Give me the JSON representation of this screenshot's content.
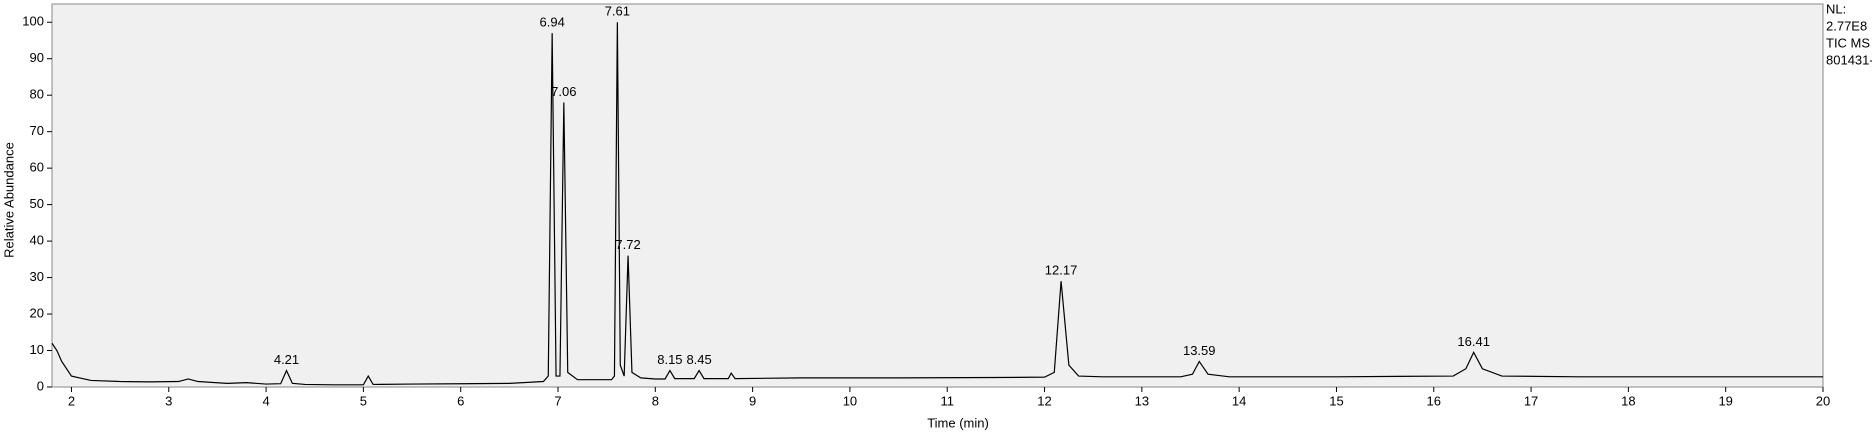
{
  "chart_data": {
    "type": "line",
    "x_label": "Time (min)",
    "y_label": "Relative Abundance",
    "side_text": [
      "NL:",
      "2.77E8",
      "TIC MS",
      "801431-"
    ],
    "xlim": [
      1.8,
      20
    ],
    "ylim": [
      0,
      105
    ],
    "xticks": [
      2,
      3,
      4,
      5,
      6,
      7,
      8,
      9,
      10,
      11,
      12,
      13,
      14,
      15,
      16,
      17,
      18,
      19,
      20
    ],
    "yticks": [
      0,
      10,
      20,
      30,
      40,
      50,
      60,
      70,
      80,
      90,
      100
    ],
    "color": "#000000",
    "background": "#f0f0f0",
    "x": [
      1.8,
      1.85,
      1.9,
      2.0,
      2.2,
      2.5,
      2.8,
      3.1,
      3.2,
      3.3,
      3.6,
      3.8,
      4.0,
      4.15,
      4.21,
      4.27,
      4.4,
      4.7,
      5.0,
      5.05,
      5.1,
      5.5,
      6.0,
      6.5,
      6.85,
      6.9,
      6.94,
      6.98,
      7.02,
      7.06,
      7.1,
      7.2,
      7.4,
      7.55,
      7.58,
      7.61,
      7.64,
      7.68,
      7.72,
      7.76,
      7.85,
      8.0,
      8.1,
      8.15,
      8.2,
      8.4,
      8.45,
      8.5,
      8.75,
      8.78,
      8.82,
      9.5,
      10.5,
      11.5,
      12.0,
      12.1,
      12.17,
      12.25,
      12.35,
      12.6,
      13.4,
      13.52,
      13.59,
      13.68,
      13.9,
      15.0,
      16.2,
      16.33,
      16.41,
      16.5,
      16.7,
      17.5,
      19.0,
      20.0
    ],
    "values": [
      12,
      10,
      7,
      3,
      1.8,
      1.5,
      1.4,
      1.5,
      2.2,
      1.5,
      1,
      1.2,
      0.8,
      0.9,
      4.5,
      1,
      0.7,
      0.6,
      0.6,
      3,
      0.7,
      0.8,
      0.9,
      1,
      1.5,
      3,
      97,
      3,
      3,
      78,
      4,
      2,
      2,
      2,
      3,
      100,
      6,
      3,
      36,
      4,
      2.5,
      2.2,
      2.2,
      4.5,
      2.3,
      2.3,
      4.5,
      2.3,
      2.3,
      3.8,
      2.3,
      2.5,
      2.5,
      2.6,
      2.7,
      4,
      29,
      6,
      3,
      2.8,
      2.8,
      3.5,
      7,
      3.5,
      2.8,
      2.8,
      3,
      5,
      9.5,
      5,
      3,
      2.8,
      2.8,
      2.8
    ],
    "peaks": [
      {
        "x": 4.21,
        "y": 4.5
      },
      {
        "x": 6.94,
        "y": 97
      },
      {
        "x": 7.06,
        "y": 78
      },
      {
        "x": 7.61,
        "y": 100
      },
      {
        "x": 7.72,
        "y": 36
      },
      {
        "x": 8.15,
        "y": 4.5
      },
      {
        "x": 8.45,
        "y": 4.5
      },
      {
        "x": 12.17,
        "y": 29
      },
      {
        "x": 13.59,
        "y": 7
      },
      {
        "x": 16.41,
        "y": 9.5
      }
    ]
  }
}
